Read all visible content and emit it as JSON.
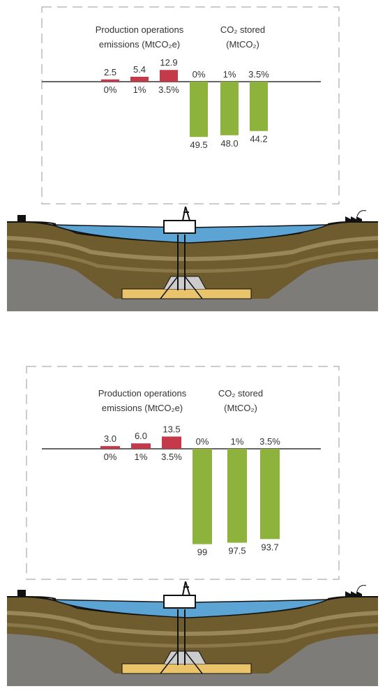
{
  "chart_data": [
    {
      "type": "bar",
      "title": [
        "Production operations",
        "emissions (MtCO₂e)"
      ],
      "categories": [
        "0%",
        "1%",
        "3.5%"
      ],
      "values": [
        2.5,
        5.4,
        12.9
      ],
      "value_labels": [
        "2.5",
        "5.4",
        "12.9"
      ],
      "color": "#c43a4a"
    },
    {
      "type": "bar",
      "title": [
        "CO₂ stored",
        "(MtCO₂)"
      ],
      "categories": [
        "0%",
        "1%",
        "3.5%"
      ],
      "values": [
        49.5,
        48.0,
        44.2
      ],
      "value_labels": [
        "49.5",
        "48.0",
        "44.2"
      ],
      "color": "#8db33c"
    },
    {
      "type": "bar",
      "title": [
        "Production operations",
        "emissions (MtCO₂e)"
      ],
      "categories": [
        "0%",
        "1%",
        "3.5%"
      ],
      "values": [
        3.0,
        6.0,
        13.5
      ],
      "value_labels": [
        "3.0",
        "6.0",
        "13.5"
      ],
      "color": "#c43a4a"
    },
    {
      "type": "bar",
      "title": [
        "CO₂ stored",
        "(MtCO₂)"
      ],
      "categories": [
        "0%",
        "1%",
        "3.5%"
      ],
      "values": [
        99,
        97.5,
        93.7
      ],
      "value_labels": [
        "99",
        "97.5",
        "93.7"
      ],
      "color": "#8db33c"
    }
  ]
}
